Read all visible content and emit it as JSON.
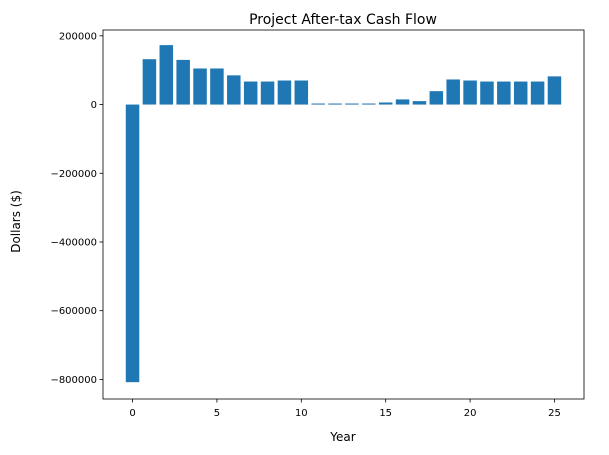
{
  "chart_data": {
    "type": "bar",
    "title": "Project After-tax Cash Flow",
    "xlabel": "Year",
    "ylabel": "Dollars ($)",
    "x": [
      0,
      1,
      2,
      3,
      4,
      5,
      6,
      7,
      8,
      9,
      10,
      11,
      12,
      13,
      14,
      15,
      16,
      17,
      18,
      19,
      20,
      21,
      22,
      23,
      24,
      25
    ],
    "values": [
      -808000,
      132000,
      173000,
      130000,
      105000,
      105000,
      85000,
      67000,
      67000,
      70000,
      70000,
      3000,
      3000,
      3000,
      3000,
      6000,
      15000,
      10000,
      39000,
      73000,
      70000,
      67000,
      67000,
      67000,
      67000,
      82000
    ],
    "xlim": [
      -1.75,
      26.75
    ],
    "ylim": [
      -857000,
      217000
    ],
    "xticks": [
      0,
      5,
      10,
      15,
      20,
      25
    ],
    "yticks": [
      -800000,
      -600000,
      -400000,
      -200000,
      0,
      200000
    ],
    "xtick_labels": [
      "0",
      "5",
      "10",
      "15",
      "20",
      "25"
    ],
    "ytick_labels": [
      "−800000",
      "−600000",
      "−400000",
      "−200000",
      "0",
      "200000"
    ],
    "bar_color": "#1f77b4",
    "grid": false,
    "legend": false
  }
}
